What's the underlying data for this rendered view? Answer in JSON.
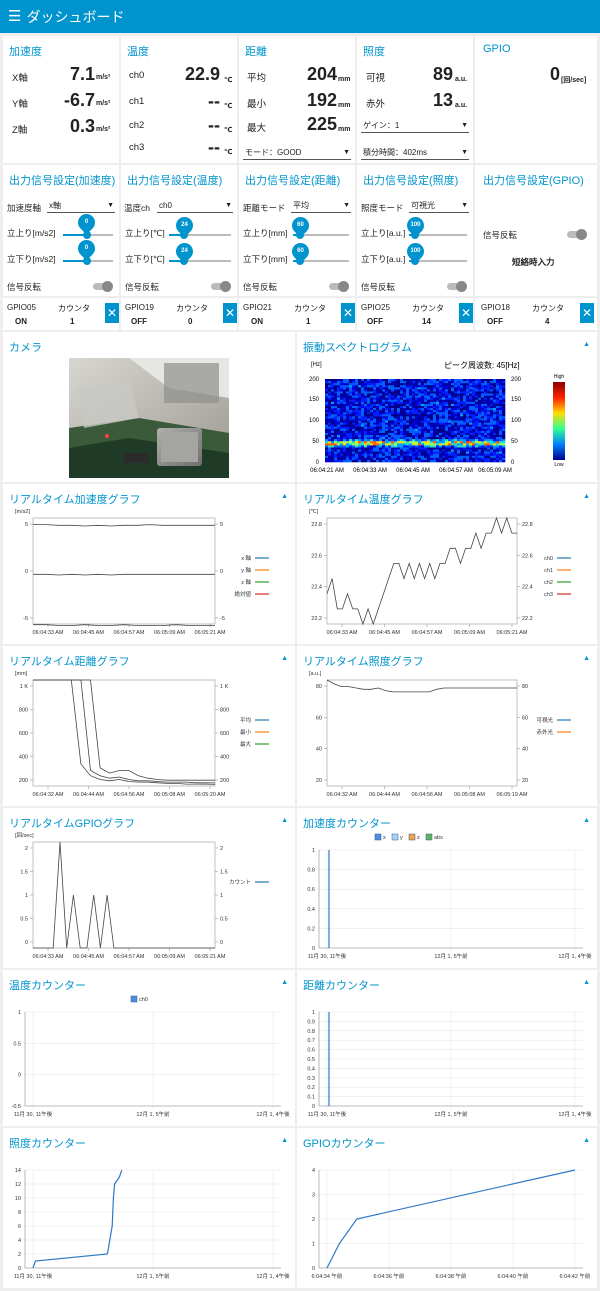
{
  "header": {
    "menu_icon": "hamburger-icon",
    "title": "ダッシュボード"
  },
  "accel": {
    "title": "加速度",
    "x_label": "X軸",
    "x_value": "7.1",
    "y_label": "Y軸",
    "y_value": "-6.7",
    "z_label": "Z軸",
    "z_value": "0.3",
    "unit": "m/s²"
  },
  "temp": {
    "title": "温度",
    "ch0_label": "ch0",
    "ch0_value": "22.9",
    "ch1_label": "ch1",
    "ch1_value": "--",
    "ch2_label": "ch2",
    "ch2_value": "--",
    "ch3_label": "ch3",
    "ch3_value": "--",
    "unit": "℃"
  },
  "dist": {
    "title": "距離",
    "avg_label": "平均",
    "avg_value": "204",
    "min_label": "最小",
    "min_value": "192",
    "max_label": "最大",
    "max_value": "225",
    "unit": "mm",
    "mode_select": "モード：GOOD"
  },
  "lux": {
    "title": "照度",
    "vis_label": "可視",
    "vis_value": "89",
    "ir_label": "赤外",
    "ir_value": "13",
    "unit": "a.u.",
    "gain_select": "ゲイン：1",
    "integ_select": "積分時間：402ms"
  },
  "gpio": {
    "title": "GPIO",
    "value": "0",
    "unit": "[回/sec]"
  },
  "out_accel": {
    "title": "出力信号設定(加速度)",
    "axis_label": "加速度軸",
    "axis_select": "x軸",
    "rise_label": "立上り[m/s2]",
    "rise_val": "0",
    "fall_label": "立下り[m/s2]",
    "fall_val": "0",
    "inv_label": "信号反転",
    "gpio": "GPIO05",
    "gpio_state": "ON",
    "count_label": "カウンタ",
    "count": "1"
  },
  "out_temp": {
    "title": "出力信号設定(温度)",
    "ch_label": "温度ch",
    "ch_select": "ch0",
    "rise_label": "立上り[℃]",
    "rise_val": "24",
    "fall_label": "立下り[℃]",
    "fall_val": "24",
    "inv_label": "信号反転",
    "gpio": "GPIO19",
    "gpio_state": "OFF",
    "count_label": "カウンタ",
    "count": "0"
  },
  "out_dist": {
    "title": "出力信号設定(距離)",
    "mode_label": "距離モード",
    "mode_select": "平均",
    "rise_label": "立上り[mm]",
    "rise_val": "60",
    "fall_label": "立下り[mm]",
    "fall_val": "60",
    "inv_label": "信号反転",
    "gpio": "GPIO21",
    "gpio_state": "ON",
    "count_label": "カウンタ",
    "count": "1"
  },
  "out_lux": {
    "title": "出力信号設定(照度)",
    "mode_label": "照度モード",
    "mode_select": "可視光",
    "rise_label": "立上り[a.u.]",
    "rise_val": "100",
    "fall_label": "立下り[a.u.]",
    "fall_val": "100",
    "inv_label": "信号反転",
    "gpio": "GPIO25",
    "gpio_state": "OFF",
    "count_label": "カウンタ",
    "count": "14"
  },
  "out_gpio": {
    "title": "出力信号設定(GPIO)",
    "inv_label": "信号反転",
    "short_label": "短絡時入力",
    "gpio": "GPIO18",
    "gpio_state": "OFF",
    "count_label": "カウンタ",
    "count": "4"
  },
  "close_icon": "close-icon",
  "camera": {
    "title": "カメラ"
  },
  "spectro": {
    "title": "振動スペクトログラム",
    "peak": "ピーク周波数: 45[Hz]",
    "unit": "[Hz]",
    "legend_high": "High",
    "legend_low": "Low",
    "yticks": [
      "200",
      "150",
      "100",
      "50",
      "0"
    ],
    "xticks": [
      "06:04:21 AM",
      "06:04:33 AM",
      "06:04:45 AM",
      "06:04:57 AM",
      "06:05:09 AM"
    ]
  },
  "chart_data": [
    {
      "type": "line",
      "title": "リアルタイム加速度グラフ",
      "ylabel": "[m/s2]",
      "ylim": [
        -6.5,
        8
      ],
      "yticks": [
        "5",
        "0",
        "-5"
      ],
      "xticks": [
        "06:04:33 AM",
        "06:04:45 AM",
        "06:04:57 AM",
        "06:05:09 AM",
        "06:05:21 AM"
      ],
      "legend": [
        "x 軸",
        "y 軸",
        "z 軸",
        "絶対値"
      ],
      "colors": [
        "#1f77b4",
        "#ff7f0e",
        "#2ca02c",
        "#d62728"
      ],
      "series": [
        {
          "name": "x 軸",
          "values": [
            7.1,
            7.1,
            7.0,
            7.0,
            6.9,
            7.0,
            6.9,
            7.0,
            7.0,
            7.1,
            7.0,
            7.0,
            7.0,
            7.0,
            7.0
          ]
        },
        {
          "name": "z 軸",
          "values": [
            0.3,
            0.3,
            0.2,
            0.3,
            0.2,
            0.3,
            0.2,
            0.3,
            0.3,
            0.3,
            0.3,
            0.3,
            0.3,
            0.3,
            0.3
          ]
        },
        {
          "name": "y 軸",
          "values": [
            -6.6,
            -6.6,
            -6.7,
            -6.7,
            -6.6,
            -6.7,
            -6.7,
            -6.6,
            -6.7,
            -6.7,
            -6.7,
            -6.6,
            -6.7,
            -6.7,
            -6.7
          ]
        }
      ]
    },
    {
      "type": "line",
      "title": "リアルタイム温度グラフ",
      "ylabel": "[℃]",
      "ylim": [
        22.2,
        22.9
      ],
      "yticks": [
        "22.8",
        "22.6",
        "22.4",
        "22.2"
      ],
      "xticks": [
        "06:04:33 AM",
        "06:04:45 AM",
        "06:04:57 AM",
        "06:05:09 AM",
        "06:05:21 AM"
      ],
      "legend": [
        "ch0",
        "ch1",
        "ch2",
        "ch3"
      ],
      "colors": [
        "#1f77b4",
        "#ff7f0e",
        "#2ca02c",
        "#d62728"
      ],
      "series": [
        {
          "name": "ch0",
          "values": [
            22.4,
            22.5,
            22.3,
            22.3,
            22.4,
            22.3,
            22.3,
            22.2,
            22.3,
            22.2,
            22.3,
            22.4,
            22.5,
            22.6,
            22.6,
            22.5,
            22.6,
            22.5,
            22.6,
            22.5,
            22.6,
            22.5,
            22.6,
            22.6,
            22.7,
            22.7,
            22.6,
            22.7,
            22.7,
            22.8,
            22.7,
            22.8,
            22.8,
            22.9,
            22.8,
            22.9,
            22.8,
            22.8
          ]
        }
      ]
    },
    {
      "type": "line",
      "title": "リアルタイム距離グラフ",
      "ylabel": "[mm]",
      "ylim": [
        180,
        1000
      ],
      "yticks": [
        "1 K",
        "800",
        "600",
        "400",
        "200"
      ],
      "xticks": [
        "06:04:32 AM",
        "06:04:44 AM",
        "06:04:56 AM",
        "06:05:08 AM",
        "06:05:20 AM"
      ],
      "legend": [
        "平均",
        "最小",
        "最大"
      ],
      "colors": [
        "#1f77b4",
        "#ff7f0e",
        "#2ca02c"
      ],
      "series": [
        {
          "name": "平均",
          "values": [
            1000,
            1000,
            1000,
            1000,
            1000,
            1000,
            300,
            260,
            240,
            250,
            230,
            220,
            220,
            215,
            210,
            210,
            210,
            205,
            205,
            204
          ]
        },
        {
          "name": "最小",
          "values": [
            1000,
            1000,
            1000,
            1000,
            1000,
            350,
            260,
            230,
            220,
            230,
            215,
            210,
            210,
            205,
            200,
            200,
            195,
            195,
            195,
            192
          ]
        },
        {
          "name": "最大",
          "values": [
            1000,
            1000,
            1000,
            1000,
            1000,
            1000,
            1000,
            320,
            280,
            300,
            300,
            260,
            240,
            230,
            225,
            225,
            225,
            225,
            225,
            225
          ]
        }
      ]
    },
    {
      "type": "line",
      "title": "リアルタイム照度グラフ",
      "ylabel": "[a.u.]",
      "ylim": [
        15,
        95
      ],
      "yticks": [
        "80",
        "60",
        "40",
        "20"
      ],
      "xticks": [
        "06:04:32 AM",
        "06:04:44 AM",
        "06:04:56 AM",
        "06:05:08 AM",
        "06:05:19 AM"
      ],
      "legend": [
        "可視光",
        "赤外光"
      ],
      "colors": [
        "#1f77b4",
        "#ff7f0e"
      ],
      "series": [
        {
          "name": "可視光",
          "values": [
            95,
            92,
            90,
            90,
            89,
            88,
            88,
            89,
            87,
            86,
            86,
            86,
            86,
            86,
            86,
            88,
            89,
            89,
            89,
            89,
            89,
            89,
            89,
            89,
            89,
            89,
            89
          ]
        }
      ]
    },
    {
      "type": "line",
      "title": "リアルタイムGPIOグラフ",
      "ylabel": "[回/sec]",
      "ylim": [
        0,
        2
      ],
      "yticks": [
        "2",
        "1.5",
        "1",
        "0.5",
        "0"
      ],
      "xticks": [
        "06:04:33 AM",
        "06:04:45 AM",
        "06:04:57 AM",
        "06:05:09 AM",
        "06:05:21 AM"
      ],
      "legend": [
        "カウント"
      ],
      "colors": [
        "#1f77b4"
      ],
      "series": [
        {
          "name": "カウント",
          "values": [
            0,
            0,
            0,
            0,
            2,
            0,
            1,
            0,
            0,
            1,
            0,
            1,
            0,
            0,
            0,
            0,
            0,
            0,
            0,
            0,
            0,
            0,
            0,
            0,
            0,
            0,
            0,
            0
          ]
        }
      ]
    },
    {
      "type": "bar",
      "title": "加速度カウンター",
      "legend": [
        "x",
        "y",
        "z",
        "abs"
      ],
      "colors": [
        "#4e8fd9",
        "#aed2f0",
        "#f5a043",
        "#63b35a"
      ],
      "ylim": [
        0,
        1
      ],
      "yticks": [
        "1",
        "0.8",
        "0.6",
        "0.4",
        "0.2",
        "0"
      ],
      "xticks": [
        "11月 30, 11午後",
        "12月 1, 5午前",
        "12月 1, 4午後"
      ],
      "x": [
        0.12
      ],
      "values": [
        1
      ]
    },
    {
      "type": "bar",
      "title": "温度カウンター",
      "legend": [
        "ch0"
      ],
      "colors": [
        "#4e8fd9"
      ],
      "ylim": [
        -0.5,
        1
      ],
      "yticks": [
        "1",
        "0.5",
        "0",
        "-0.5"
      ],
      "xticks": [
        "11月 30, 11午後",
        "12月 1, 5午前",
        "12月 1, 4午後"
      ],
      "x": [],
      "values": []
    },
    {
      "type": "bar",
      "title": "距離カウンター",
      "legend": [],
      "colors": [
        "#4e8fd9"
      ],
      "ylim": [
        0,
        1
      ],
      "yticks": [
        "1",
        "0.9",
        "0.8",
        "0.7",
        "0.6",
        "0.5",
        "0.4",
        "0.3",
        "0.2",
        "0.1",
        "0"
      ],
      "xticks": [
        "11月 30, 11午後",
        "12月 1, 5午前",
        "12月 1, 4午後"
      ],
      "x": [
        0.12
      ],
      "values": [
        1
      ]
    },
    {
      "type": "line",
      "title": "照度カウンター",
      "ylim": [
        0,
        14
      ],
      "yticks": [
        "14",
        "12",
        "10",
        "8",
        "6",
        "4",
        "2",
        "0"
      ],
      "xticks": [
        "11月 30, 11午後",
        "12月 1, 5午前",
        "12月 1, 4午後"
      ],
      "colors": [
        "#2e78c8"
      ],
      "series": [
        {
          "name": "",
          "xs": [
            0.0,
            0.01,
            0.31,
            0.32,
            0.33,
            0.335,
            0.34,
            0.36,
            0.37
          ],
          "values": [
            0,
            1,
            2,
            4,
            6,
            10,
            12,
            13,
            14
          ]
        }
      ]
    },
    {
      "type": "line",
      "title": "GPIOカウンター",
      "ylim": [
        0,
        4
      ],
      "yticks": [
        "4",
        "3",
        "2",
        "1",
        "0"
      ],
      "xticks": [
        "6:04:34 午前",
        "6:04:36 午前",
        "6:04:38 午前",
        "6:04:40 午前",
        "6:04:42 午前"
      ],
      "colors": [
        "#2e78c8"
      ],
      "series": [
        {
          "name": "",
          "xs": [
            0.0,
            0.05,
            0.12,
            1.0
          ],
          "values": [
            0,
            1,
            2,
            4
          ]
        }
      ]
    }
  ]
}
